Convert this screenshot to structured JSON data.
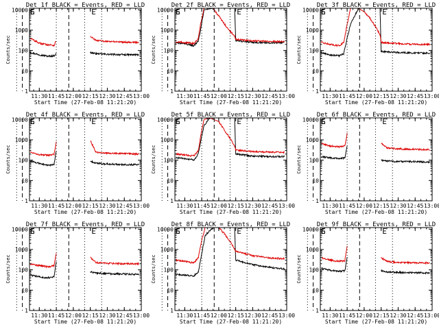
{
  "colors": {
    "events": "#000000",
    "lld": "#dd0000",
    "axes": "#000000"
  },
  "shared": {
    "xlabel": "Start Time (27-Feb-08 11:21:20)",
    "ylabel": "Counts/sec",
    "xticks": [
      "11:30",
      "11:45",
      "12:00",
      "12:15",
      "12:30",
      "12:45",
      "13:00"
    ],
    "yticks": [
      "1",
      "10",
      "100",
      "1000",
      "10000"
    ],
    "markers": [
      "E",
      "S",
      "E"
    ],
    "xlim": [
      "11:21:20",
      "13:00"
    ],
    "ylim": [
      1,
      12000
    ],
    "yscale": "log"
  },
  "chart_data": [
    {
      "type": "line",
      "title": "Det 1f BLACK = Events, RED = LLD",
      "x": [
        "11:22",
        "11:30",
        "11:38",
        "11:43",
        "11:45",
        "11:46",
        "12:14",
        "12:15",
        "12:20",
        "12:30",
        "12:45",
        "12:58"
      ],
      "series": [
        {
          "name": "BLACK = Events",
          "values": [
            80,
            62,
            52,
            55,
            70,
            null,
            null,
            80,
            70,
            65,
            62,
            62
          ]
        },
        {
          "name": "RED = LLD",
          "values": [
            400,
            230,
            190,
            180,
            300,
            null,
            null,
            500,
            310,
            280,
            260,
            250
          ]
        }
      ]
    },
    {
      "type": "line",
      "title": "Det 2f BLACK = Events, RED = LLD",
      "x": [
        "11:22",
        "11:30",
        "11:38",
        "11:42",
        "11:44",
        "11:47",
        "11:55",
        "12:00",
        "12:05",
        "12:10",
        "12:14",
        "12:15",
        "12:30",
        "12:45",
        "12:58"
      ],
      "series": [
        {
          "name": "BLACK = Events",
          "values": [
            230,
            220,
            170,
            300,
            1000,
            10000,
            12000,
            12000,
            12000,
            12000,
            12000,
            300,
            250,
            240,
            250
          ]
        },
        {
          "name": "RED = LLD",
          "values": [
            260,
            250,
            220,
            400,
            2000,
            12000,
            12000,
            5000,
            2000,
            900,
            500,
            350,
            300,
            280,
            280
          ]
        }
      ]
    },
    {
      "type": "line",
      "title": "Det 3f BLACK = Events, RED = LLD",
      "x": [
        "11:22",
        "11:30",
        "11:38",
        "11:42",
        "11:45",
        "11:48",
        "11:55",
        "12:00",
        "12:05",
        "12:10",
        "12:14",
        "12:15",
        "12:30",
        "12:45",
        "12:58"
      ],
      "series": [
        {
          "name": "BLACK = Events",
          "values": [
            80,
            60,
            55,
            70,
            400,
            2000,
            12000,
            12000,
            12000,
            12000,
            12000,
            90,
            80,
            75,
            75
          ]
        },
        {
          "name": "RED = LLD",
          "values": [
            250,
            200,
            170,
            250,
            2000,
            12000,
            12000,
            8000,
            4000,
            1500,
            600,
            250,
            220,
            200,
            200
          ]
        }
      ]
    },
    {
      "type": "line",
      "title": "Det 4f BLACK = Events, RED = LLD",
      "x": [
        "11:22",
        "11:30",
        "11:38",
        "11:43",
        "11:45",
        "11:46",
        "12:14",
        "12:15",
        "12:20",
        "12:30",
        "12:45",
        "12:58"
      ],
      "series": [
        {
          "name": "BLACK = Events",
          "values": [
            90,
            70,
            55,
            60,
            300,
            null,
            null,
            90,
            70,
            65,
            60,
            60
          ]
        },
        {
          "name": "RED = LLD",
          "values": [
            250,
            190,
            170,
            190,
            800,
            null,
            null,
            900,
            250,
            220,
            210,
            200
          ]
        }
      ]
    },
    {
      "type": "line",
      "title": "Det 5f BLACK = Events, RED = LLD",
      "x": [
        "11:22",
        "11:30",
        "11:38",
        "11:42",
        "11:44",
        "11:47",
        "11:52",
        "12:00",
        "12:05",
        "12:10",
        "12:14",
        "12:15",
        "12:30",
        "12:45",
        "12:58"
      ],
      "series": [
        {
          "name": "BLACK = Events",
          "values": [
            130,
            120,
            100,
            200,
            800,
            5000,
            12000,
            12000,
            12000,
            12000,
            12000,
            200,
            160,
            150,
            150
          ]
        },
        {
          "name": "RED = LLD",
          "values": [
            200,
            180,
            160,
            300,
            1500,
            10000,
            12000,
            8000,
            3000,
            1200,
            500,
            320,
            260,
            250,
            240
          ]
        }
      ]
    },
    {
      "type": "line",
      "title": "Det 6f BLACK = Events, RED = LLD",
      "x": [
        "11:22",
        "11:30",
        "11:38",
        "11:43",
        "11:45",
        "11:46",
        "12:14",
        "12:15",
        "12:20",
        "12:30",
        "12:45",
        "12:58"
      ],
      "series": [
        {
          "name": "BLACK = Events",
          "values": [
            150,
            130,
            120,
            130,
            500,
            null,
            null,
            100,
            90,
            85,
            85,
            80
          ]
        },
        {
          "name": "RED = LLD",
          "values": [
            650,
            500,
            450,
            500,
            2000,
            null,
            null,
            700,
            400,
            360,
            340,
            330
          ]
        }
      ]
    },
    {
      "type": "line",
      "title": "Det 7f BLACK = Events, RED = LLD",
      "x": [
        "11:22",
        "11:30",
        "11:38",
        "11:43",
        "11:45",
        "11:46",
        "12:14",
        "12:15",
        "12:20",
        "12:30",
        "12:45",
        "12:58"
      ],
      "series": [
        {
          "name": "BLACK = Events",
          "values": [
            55,
            45,
            40,
            45,
            250,
            null,
            null,
            80,
            70,
            65,
            62,
            60
          ]
        },
        {
          "name": "RED = LLD",
          "values": [
            200,
            160,
            140,
            160,
            700,
            null,
            null,
            400,
            230,
            210,
            200,
            200
          ]
        }
      ]
    },
    {
      "type": "line",
      "title": "Det 8f BLACK = Events, RED = LLD",
      "x": [
        "11:22",
        "11:30",
        "11:38",
        "11:42",
        "11:45",
        "11:48",
        "11:55",
        "12:00",
        "12:05",
        "12:10",
        "12:14",
        "12:15",
        "12:30",
        "12:45",
        "12:58"
      ],
      "series": [
        {
          "name": "BLACK = Events",
          "values": [
            60,
            55,
            50,
            80,
            600,
            5000,
            12000,
            12000,
            12000,
            12000,
            12000,
            300,
            180,
            130,
            110
          ]
        },
        {
          "name": "RED = LLD",
          "values": [
            300,
            260,
            220,
            400,
            3000,
            12000,
            12000,
            12000,
            6000,
            2500,
            1000,
            800,
            500,
            380,
            350
          ]
        }
      ]
    },
    {
      "type": "line",
      "title": "Det 9f BLACK = Events, RED = LLD",
      "x": [
        "11:22",
        "11:30",
        "11:38",
        "11:43",
        "11:45",
        "11:46",
        "12:14",
        "12:15",
        "12:20",
        "12:30",
        "12:45",
        "12:58"
      ],
      "series": [
        {
          "name": "BLACK = Events",
          "values": [
            120,
            95,
            85,
            90,
            400,
            null,
            null,
            90,
            80,
            75,
            72,
            70
          ]
        },
        {
          "name": "RED = LLD",
          "values": [
            400,
            300,
            260,
            280,
            1500,
            null,
            null,
            400,
            260,
            230,
            220,
            220
          ]
        }
      ]
    }
  ]
}
